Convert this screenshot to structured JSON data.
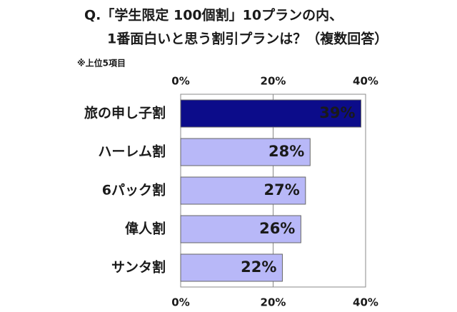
{
  "chart_data": {
    "type": "bar",
    "orientation": "horizontal",
    "title": [
      "Q.「学生限定 100個割」10プランの内、",
      "1番面白いと思う割引プランは？（複数回答）"
    ],
    "subtitle": "※上位5項目",
    "categories": [
      "旅の申し子割",
      "ハーレム割",
      "6パック割",
      "偉人割",
      "サンタ割"
    ],
    "values": [
      39,
      28,
      27,
      26,
      22
    ],
    "value_labels": [
      "39%",
      "28%",
      "27%",
      "26%",
      "22%"
    ],
    "colors": [
      "#0c0c8a",
      "#b8b8f8",
      "#b8b8f8",
      "#b8b8f8",
      "#b8b8f8"
    ],
    "label_colors": [
      "#ffffff",
      "#1a1a1a",
      "#1a1a1a",
      "#1a1a1a",
      "#1a1a1a"
    ],
    "xlim": [
      0,
      40
    ],
    "xticks": [
      {
        "value": 0,
        "label": "0%"
      },
      {
        "value": 20,
        "label": "20%"
      },
      {
        "value": 40,
        "label": "40%"
      }
    ],
    "grid": true
  }
}
